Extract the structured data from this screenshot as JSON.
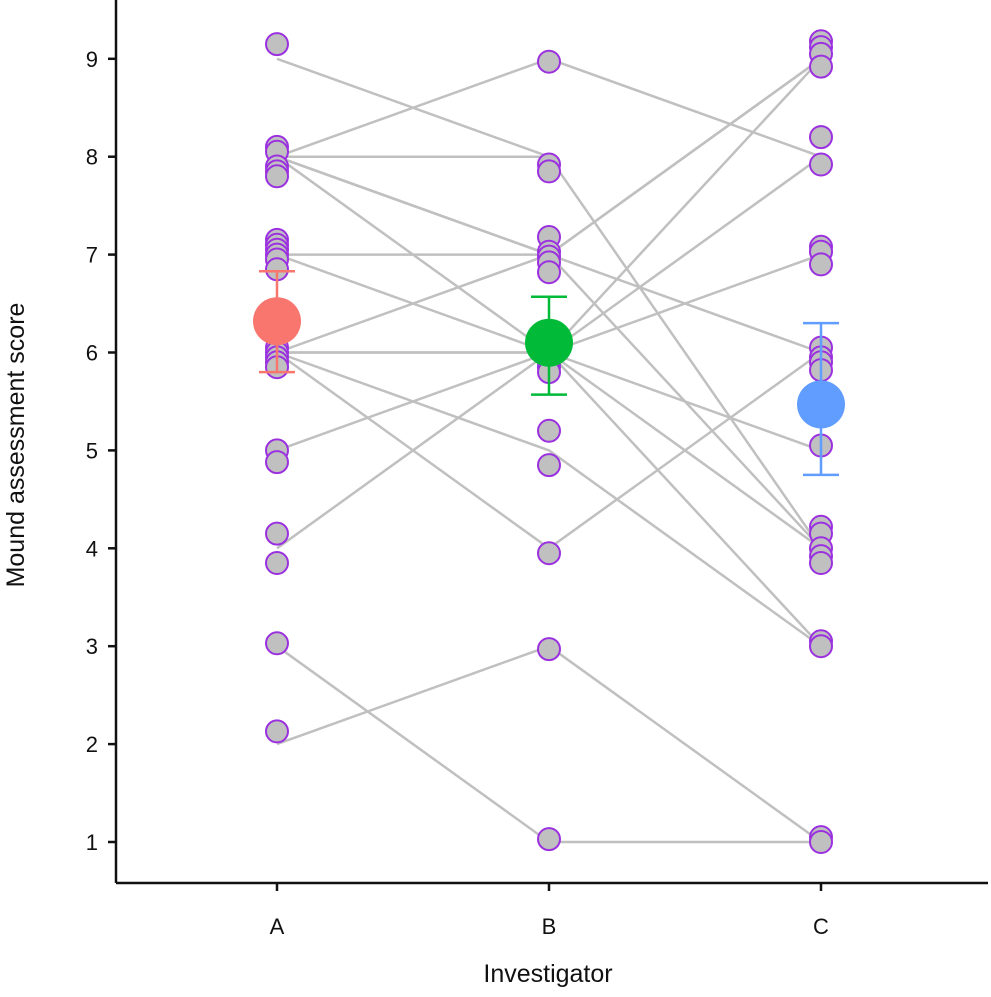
{
  "chart_data": {
    "type": "scatter",
    "subtype": "paired-points-with-mean-and-error-bars",
    "title": "",
    "xlabel": "Investigator",
    "ylabel": "Mound assessment score",
    "categories": [
      "A",
      "B",
      "C"
    ],
    "yticks": [
      1,
      2,
      3,
      4,
      5,
      6,
      7,
      8,
      9
    ],
    "ylim": [
      0.6,
      9.6
    ],
    "grid": false,
    "legend": "none",
    "colors": {
      "connector": "#c0c0c0",
      "point_fill": "#c0c0c0",
      "point_stroke": "#9b30e0",
      "mean_A": "#f8766d",
      "mean_B": "#00ba38",
      "mean_C": "#619cff",
      "axis": "#111111"
    },
    "points": {
      "A": [
        9.15,
        8.1,
        8.05,
        7.9,
        7.85,
        7.8,
        7.15,
        7.1,
        7.05,
        7.0,
        6.95,
        6.85,
        6.05,
        6.0,
        5.95,
        5.9,
        5.85,
        5.0,
        4.88,
        4.15,
        3.85,
        3.03,
        2.13
      ],
      "B": [
        8.97,
        7.92,
        7.85,
        7.18,
        7.03,
        6.98,
        6.92,
        6.82,
        6.0,
        5.95,
        5.9,
        5.85,
        5.8,
        5.2,
        4.85,
        3.95,
        2.97,
        1.03
      ],
      "C": [
        9.18,
        9.12,
        9.05,
        8.92,
        8.2,
        7.92,
        7.08,
        7.03,
        6.9,
        6.05,
        5.95,
        5.9,
        5.82,
        5.05,
        4.22,
        4.15,
        4.0,
        3.92,
        3.85,
        3.05,
        3.0,
        1.05,
        1.0
      ]
    },
    "connections": [
      {
        "A": 9.0,
        "B": 8.0
      },
      {
        "A": 8.0,
        "B": 9.0,
        "C": 8.0
      },
      {
        "A": 8.0,
        "B": 8.0,
        "C": 4.0
      },
      {
        "A": 8.0,
        "B": 7.0,
        "C": 9.0
      },
      {
        "A": 8.0,
        "B": 7.0,
        "C": 6.0
      },
      {
        "A": 8.0,
        "B": 6.0,
        "C": 9.0
      },
      {
        "A": 7.0,
        "B": 7.0,
        "C": 4.0
      },
      {
        "A": 7.0,
        "B": 6.0,
        "C": 8.0
      },
      {
        "A": 6.0,
        "B": 7.0,
        "C": 9.0
      },
      {
        "A": 6.0,
        "B": 6.0,
        "C": 7.0
      },
      {
        "A": 6.0,
        "B": 6.0,
        "C": 4.0
      },
      {
        "A": 6.0,
        "B": 5.0,
        "C": 3.0
      },
      {
        "A": 5.0,
        "B": 6.0,
        "C": 3.0
      },
      {
        "A": 4.0,
        "B": 6.0,
        "C": 5.0
      },
      {
        "A": 6.0,
        "B": 4.0,
        "C": 6.0
      },
      {
        "A": 2.0,
        "B": 3.0,
        "C": 1.0
      },
      {
        "A": 3.0,
        "B": 1.0,
        "C": 1.0
      }
    ],
    "means": [
      {
        "category": "A",
        "mean": 6.32,
        "lower": 5.8,
        "upper": 6.83
      },
      {
        "category": "B",
        "mean": 6.1,
        "lower": 5.57,
        "upper": 6.57
      },
      {
        "category": "C",
        "mean": 5.47,
        "lower": 4.75,
        "upper": 6.3
      }
    ]
  }
}
